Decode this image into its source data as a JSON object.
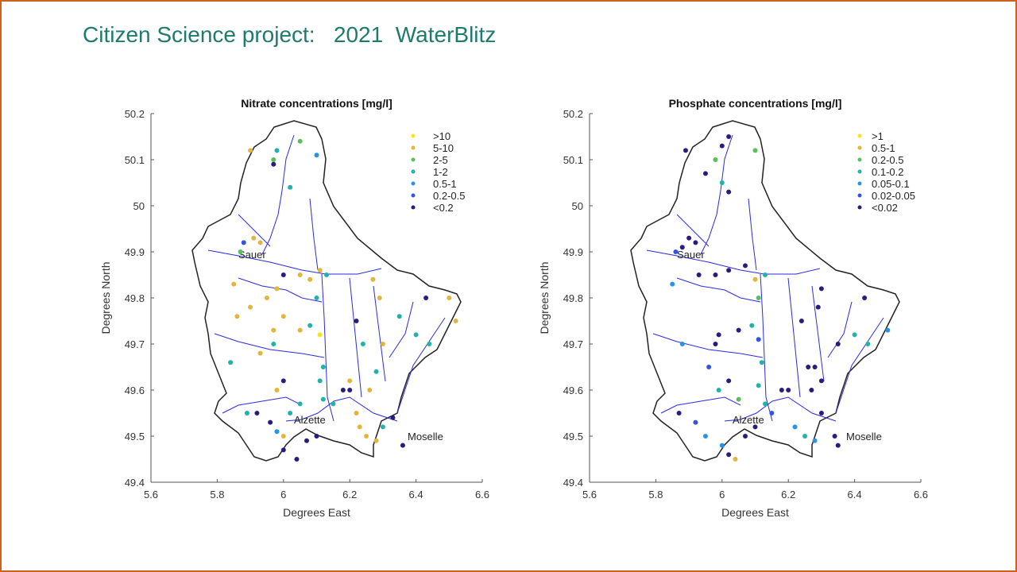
{
  "slide": {
    "title": "Citizen Science project:   2021  WaterBlitz"
  },
  "chart_data": [
    {
      "type": "scatter",
      "title": "Nitrate concentrations [mg/l]",
      "xlabel": "Degrees East",
      "ylabel": "Degrees North",
      "xlim": [
        5.6,
        6.6
      ],
      "ylim": [
        49.4,
        50.2
      ],
      "xticks": [
        "5.6",
        "5.8",
        "6",
        "6.2",
        "6.4",
        "6.6"
      ],
      "yticks": [
        "49.4",
        "49.5",
        "49.6",
        "49.7",
        "49.8",
        "49.9",
        "50",
        "50.1",
        "50.2"
      ],
      "legend_position": "top-right",
      "legend": [
        ">10",
        "5-10",
        "2-5",
        "1-2",
        "0.5-1",
        "0.2-0.5",
        "<0.2"
      ],
      "places": [
        "Sauer",
        "Alzette",
        "Moselle"
      ],
      "points": [
        [
          5.93,
          49.92,
          1
        ],
        [
          5.91,
          49.93,
          1
        ],
        [
          5.88,
          49.92,
          5
        ],
        [
          5.87,
          49.9,
          2
        ],
        [
          5.97,
          50.1,
          2
        ],
        [
          5.98,
          50.12,
          3
        ],
        [
          6.02,
          50.04,
          3
        ],
        [
          5.97,
          50.09,
          6
        ],
        [
          5.9,
          50.12,
          1
        ],
        [
          6.05,
          50.14,
          2
        ],
        [
          6.1,
          50.11,
          4
        ],
        [
          5.85,
          49.83,
          1
        ],
        [
          5.9,
          49.78,
          1
        ],
        [
          5.86,
          49.76,
          1
        ],
        [
          5.84,
          49.66,
          3
        ],
        [
          5.95,
          49.8,
          1
        ],
        [
          5.98,
          49.82,
          1
        ],
        [
          6.05,
          49.85,
          1
        ],
        [
          6.08,
          49.84,
          1
        ],
        [
          6.11,
          49.86,
          1
        ],
        [
          6.13,
          49.85,
          3
        ],
        [
          6.1,
          49.8,
          3
        ],
        [
          6.08,
          49.74,
          3
        ],
        [
          6.11,
          49.72,
          0
        ],
        [
          6.12,
          49.65,
          3
        ],
        [
          6.11,
          49.62,
          3
        ],
        [
          6.12,
          49.58,
          3
        ],
        [
          6.0,
          49.76,
          1
        ],
        [
          5.97,
          49.73,
          1
        ],
        [
          5.97,
          49.7,
          3
        ],
        [
          5.93,
          49.68,
          1
        ],
        [
          6.0,
          49.62,
          6
        ],
        [
          5.98,
          49.6,
          1
        ],
        [
          6.05,
          49.57,
          3
        ],
        [
          6.02,
          49.55,
          3
        ],
        [
          5.89,
          49.55,
          3
        ],
        [
          5.92,
          49.55,
          6
        ],
        [
          5.96,
          49.53,
          6
        ],
        [
          5.98,
          49.51,
          4
        ],
        [
          6.0,
          49.5,
          1
        ],
        [
          6.0,
          49.47,
          6
        ],
        [
          6.04,
          49.45,
          6
        ],
        [
          6.07,
          49.49,
          6
        ],
        [
          6.1,
          49.5,
          6
        ],
        [
          6.18,
          49.6,
          6
        ],
        [
          6.2,
          49.6,
          6
        ],
        [
          6.15,
          49.57,
          3
        ],
        [
          6.22,
          49.55,
          1
        ],
        [
          6.23,
          49.52,
          1
        ],
        [
          6.25,
          49.5,
          1
        ],
        [
          6.28,
          49.49,
          1
        ],
        [
          6.3,
          49.52,
          3
        ],
        [
          6.33,
          49.54,
          6
        ],
        [
          6.36,
          49.48,
          6
        ],
        [
          6.28,
          49.64,
          3
        ],
        [
          6.3,
          49.7,
          1
        ],
        [
          6.29,
          49.8,
          1
        ],
        [
          6.27,
          49.84,
          1
        ],
        [
          6.22,
          49.75,
          6
        ],
        [
          6.24,
          49.7,
          3
        ],
        [
          6.4,
          49.72,
          3
        ],
        [
          6.44,
          49.7,
          3
        ],
        [
          6.43,
          49.8,
          6
        ],
        [
          6.5,
          49.8,
          1
        ],
        [
          6.52,
          49.75,
          1
        ],
        [
          6.35,
          49.76,
          3
        ],
        [
          6.2,
          49.62,
          1
        ],
        [
          6.26,
          49.6,
          1
        ],
        [
          6.05,
          49.73,
          1
        ],
        [
          6.0,
          49.85,
          6
        ]
      ]
    },
    {
      "type": "scatter",
      "title": "Phosphate concentrations [mg/l]",
      "xlabel": "Degrees East",
      "ylabel": "Degrees North",
      "xlim": [
        5.6,
        6.6
      ],
      "ylim": [
        49.4,
        50.2
      ],
      "xticks": [
        "5.6",
        "5.8",
        "6",
        "6.2",
        "6.4",
        "6.6"
      ],
      "yticks": [
        "49.4",
        "49.5",
        "49.6",
        "49.7",
        "49.8",
        "49.9",
        "50",
        "50.1",
        "50.2"
      ],
      "legend_position": "top-right",
      "legend": [
        ">1",
        "0.5-1",
        "0.2-0.5",
        "0.1-0.2",
        "0.05-0.1",
        "0.02-0.05",
        "<0.02"
      ],
      "places": [
        "Sauer",
        "Alzette",
        "Moselle"
      ],
      "points": [
        [
          5.9,
          49.93,
          6
        ],
        [
          5.92,
          49.92,
          6
        ],
        [
          5.88,
          49.91,
          6
        ],
        [
          5.86,
          49.9,
          5
        ],
        [
          6.02,
          50.15,
          6
        ],
        [
          6.0,
          50.13,
          6
        ],
        [
          5.98,
          50.1,
          2
        ],
        [
          6.0,
          50.05,
          3
        ],
        [
          6.02,
          50.03,
          6
        ],
        [
          5.89,
          50.12,
          6
        ],
        [
          5.95,
          50.07,
          6
        ],
        [
          6.1,
          50.12,
          2
        ],
        [
          5.85,
          49.83,
          4
        ],
        [
          5.93,
          49.85,
          6
        ],
        [
          5.98,
          49.85,
          6
        ],
        [
          6.02,
          49.86,
          6
        ],
        [
          6.07,
          49.87,
          6
        ],
        [
          6.1,
          49.84,
          1
        ],
        [
          6.13,
          49.85,
          3
        ],
        [
          6.11,
          49.8,
          2
        ],
        [
          6.09,
          49.74,
          3
        ],
        [
          6.11,
          49.71,
          5
        ],
        [
          6.12,
          49.66,
          3
        ],
        [
          6.11,
          49.61,
          3
        ],
        [
          6.13,
          49.57,
          3
        ],
        [
          5.99,
          49.72,
          6
        ],
        [
          5.98,
          49.7,
          6
        ],
        [
          5.96,
          49.65,
          5
        ],
        [
          6.02,
          49.62,
          6
        ],
        [
          5.99,
          49.6,
          3
        ],
        [
          6.05,
          49.58,
          2
        ],
        [
          5.87,
          49.55,
          6
        ],
        [
          5.92,
          49.53,
          5
        ],
        [
          5.95,
          49.5,
          4
        ],
        [
          6.0,
          49.48,
          4
        ],
        [
          6.02,
          49.46,
          6
        ],
        [
          6.04,
          49.45,
          1
        ],
        [
          6.07,
          49.5,
          6
        ],
        [
          6.1,
          49.52,
          6
        ],
        [
          6.18,
          49.6,
          6
        ],
        [
          6.2,
          49.6,
          6
        ],
        [
          6.15,
          49.55,
          5
        ],
        [
          6.22,
          49.52,
          4
        ],
        [
          6.25,
          49.5,
          3
        ],
        [
          6.28,
          49.49,
          4
        ],
        [
          6.3,
          49.55,
          6
        ],
        [
          6.34,
          49.5,
          6
        ],
        [
          6.35,
          49.48,
          6
        ],
        [
          6.28,
          49.65,
          6
        ],
        [
          6.3,
          49.62,
          6
        ],
        [
          6.29,
          49.78,
          6
        ],
        [
          6.3,
          49.82,
          6
        ],
        [
          6.24,
          49.75,
          6
        ],
        [
          6.27,
          49.6,
          6
        ],
        [
          6.4,
          49.72,
          3
        ],
        [
          6.44,
          49.7,
          3
        ],
        [
          6.43,
          49.8,
          6
        ],
        [
          6.5,
          49.73,
          4
        ],
        [
          6.35,
          49.7,
          6
        ],
        [
          6.26,
          49.65,
          6
        ],
        [
          6.05,
          49.73,
          6
        ],
        [
          5.88,
          49.7,
          4
        ]
      ]
    }
  ],
  "colors": [
    "#f5e61c",
    "#e2b53c",
    "#5dbd5e",
    "#22b3a6",
    "#2c92e6",
    "#3552e0",
    "#2b1b7e"
  ],
  "river_color": "#2a2ae0"
}
